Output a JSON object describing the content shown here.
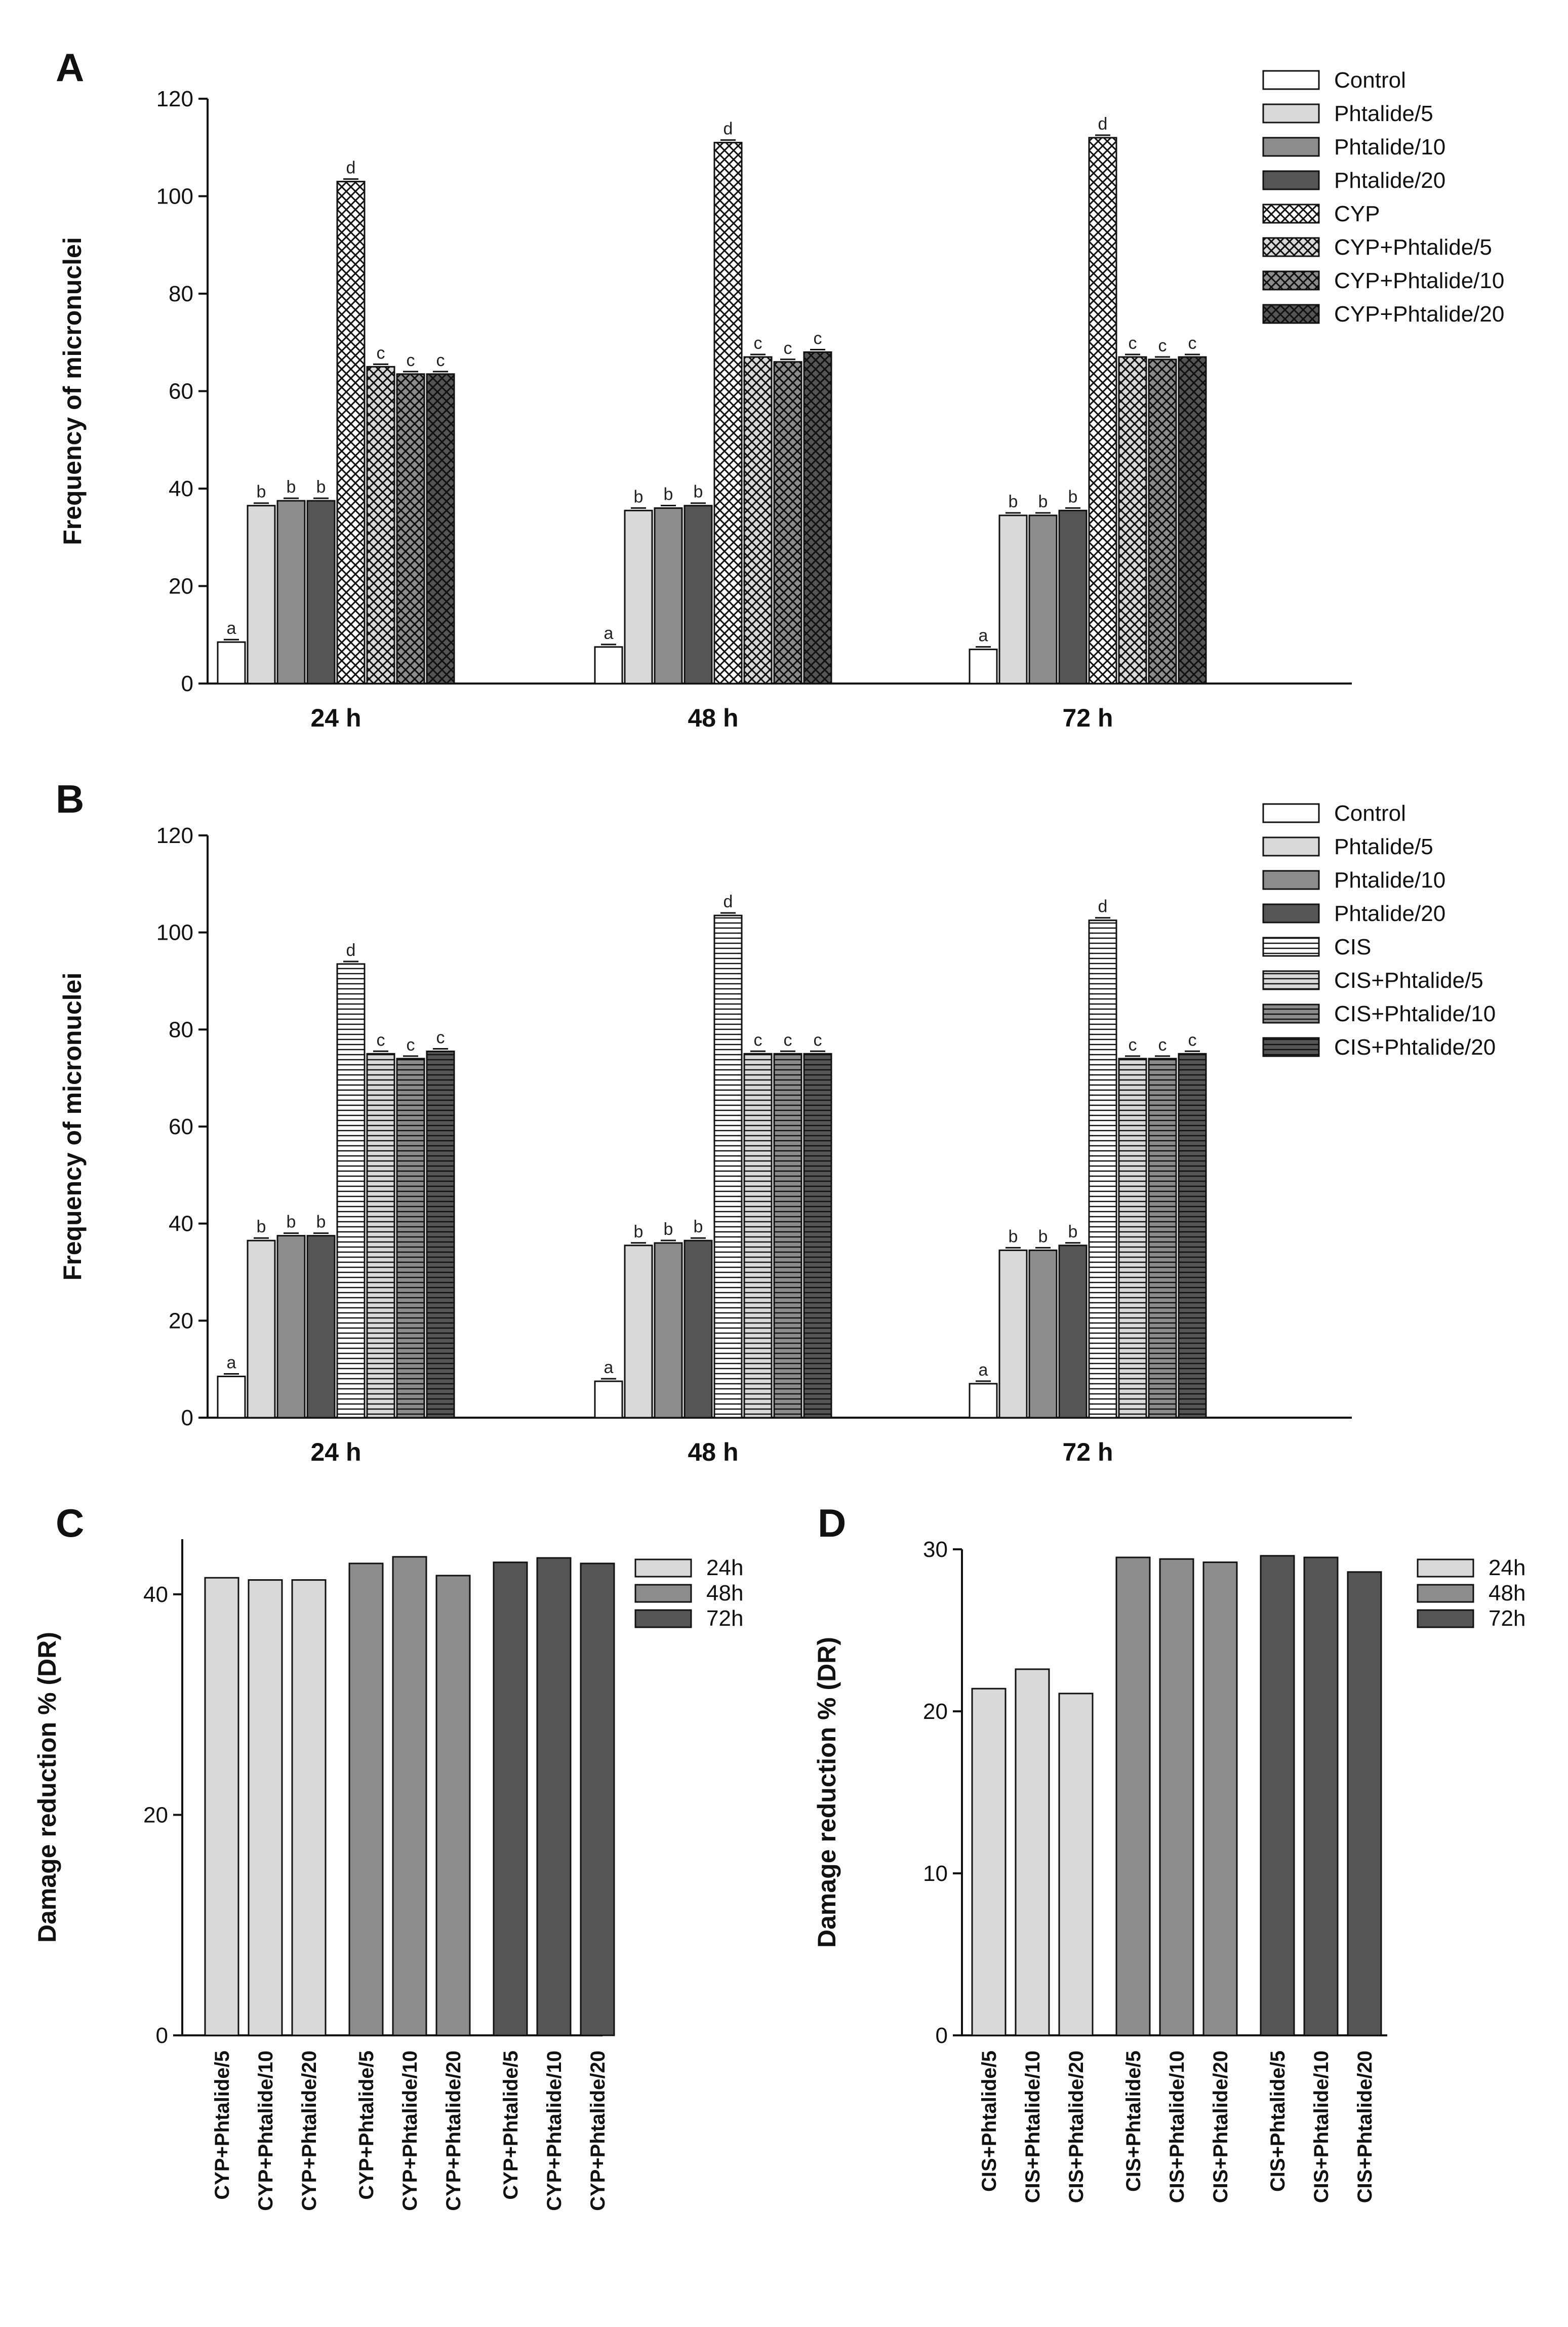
{
  "chart_data": [
    {
      "id": "A",
      "type": "bar",
      "panel": "A",
      "ylabel": "Frequency of micronuclei",
      "ylim": [
        0,
        120
      ],
      "yticks": [
        0,
        20,
        40,
        60,
        80,
        100,
        120
      ],
      "categories": [
        "24 h",
        "48 h",
        "72 h"
      ],
      "series": [
        {
          "name": "Control",
          "pattern": "white",
          "values": [
            8.5,
            7.5,
            7.0
          ],
          "letters": [
            "a",
            "a",
            "a"
          ]
        },
        {
          "name": "Phtalide/5",
          "pattern": "light",
          "values": [
            36.5,
            35.5,
            34.5
          ],
          "letters": [
            "b",
            "b",
            "b"
          ]
        },
        {
          "name": "Phtalide/10",
          "pattern": "mid",
          "values": [
            37.5,
            36.0,
            34.5
          ],
          "letters": [
            "b",
            "b",
            "b"
          ]
        },
        {
          "name": "Phtalide/20",
          "pattern": "dark",
          "values": [
            37.5,
            36.5,
            35.5
          ],
          "letters": [
            "b",
            "b",
            "b"
          ]
        },
        {
          "name": "CYP",
          "pattern": "xhatch-white",
          "values": [
            103,
            111,
            112
          ],
          "letters": [
            "d",
            "d",
            "d"
          ]
        },
        {
          "name": "CYP+Phtalide/5",
          "pattern": "xhatch-light",
          "values": [
            65,
            67,
            67
          ],
          "letters": [
            "c",
            "c",
            "c"
          ]
        },
        {
          "name": "CYP+Phtalide/10",
          "pattern": "xhatch-mid",
          "values": [
            63.5,
            66,
            66.5
          ],
          "letters": [
            "c",
            "c",
            "c"
          ]
        },
        {
          "name": "CYP+Phtalide/20",
          "pattern": "xhatch-dark",
          "values": [
            63.5,
            68,
            67
          ],
          "letters": [
            "c",
            "c",
            "c"
          ]
        }
      ]
    },
    {
      "id": "B",
      "type": "bar",
      "panel": "B",
      "ylabel": "Frequency of micronuclei",
      "ylim": [
        0,
        120
      ],
      "yticks": [
        0,
        20,
        40,
        60,
        80,
        100,
        120
      ],
      "categories": [
        "24 h",
        "48 h",
        "72 h"
      ],
      "series": [
        {
          "name": "Control",
          "pattern": "white",
          "values": [
            8.5,
            7.5,
            7.0
          ],
          "letters": [
            "a",
            "a",
            "a"
          ]
        },
        {
          "name": "Phtalide/5",
          "pattern": "light",
          "values": [
            36.5,
            35.5,
            34.5
          ],
          "letters": [
            "b",
            "b",
            "b"
          ]
        },
        {
          "name": "Phtalide/10",
          "pattern": "mid",
          "values": [
            37.5,
            36.0,
            34.5
          ],
          "letters": [
            "b",
            "b",
            "b"
          ]
        },
        {
          "name": "Phtalide/20",
          "pattern": "dark",
          "values": [
            37.5,
            36.5,
            35.5
          ],
          "letters": [
            "b",
            "b",
            "b"
          ]
        },
        {
          "name": "CIS",
          "pattern": "hstripe-white",
          "values": [
            93.5,
            103.5,
            102.5
          ],
          "letters": [
            "d",
            "d",
            "d"
          ]
        },
        {
          "name": "CIS+Phtalide/5",
          "pattern": "hstripe-light",
          "values": [
            75,
            75,
            74
          ],
          "letters": [
            "c",
            "c",
            "c"
          ]
        },
        {
          "name": "CIS+Phtalide/10",
          "pattern": "hstripe-mid",
          "values": [
            74,
            75,
            74
          ],
          "letters": [
            "c",
            "c",
            "c"
          ]
        },
        {
          "name": "CIS+Phtalide/20",
          "pattern": "hstripe-dark",
          "values": [
            75.5,
            75,
            75
          ],
          "letters": [
            "c",
            "c",
            "c"
          ]
        }
      ]
    },
    {
      "id": "C",
      "type": "bar",
      "panel": "C",
      "ylabel": "Damage reduction % (DR)",
      "ylim": [
        0,
        45
      ],
      "yticks": [
        0,
        20,
        40
      ],
      "categories": [
        "CYP+Phtalide/5",
        "CYP+Phtalide/10",
        "CYP+Phtalide/20"
      ],
      "series": [
        {
          "name": "24h",
          "pattern": "light",
          "values": [
            41.5,
            41.3,
            41.3
          ]
        },
        {
          "name": "48h",
          "pattern": "mid",
          "values": [
            42.8,
            43.4,
            41.7
          ]
        },
        {
          "name": "72h",
          "pattern": "dark",
          "values": [
            42.9,
            43.3,
            42.8
          ]
        }
      ]
    },
    {
      "id": "D",
      "type": "bar",
      "panel": "D",
      "ylabel": "Damage reduction % (DR)",
      "ylim": [
        0,
        30
      ],
      "yticks": [
        0,
        10,
        20,
        30
      ],
      "categories": [
        "CIS+Phtalide/5",
        "CIS+Phtalide/10",
        "CIS+Phtalide/20"
      ],
      "series": [
        {
          "name": "24h",
          "pattern": "light",
          "values": [
            21.4,
            22.6,
            21.1
          ]
        },
        {
          "name": "48h",
          "pattern": "mid",
          "values": [
            29.5,
            29.4,
            29.2
          ]
        },
        {
          "name": "72h",
          "pattern": "dark",
          "values": [
            29.6,
            29.5,
            28.6
          ]
        }
      ]
    }
  ]
}
